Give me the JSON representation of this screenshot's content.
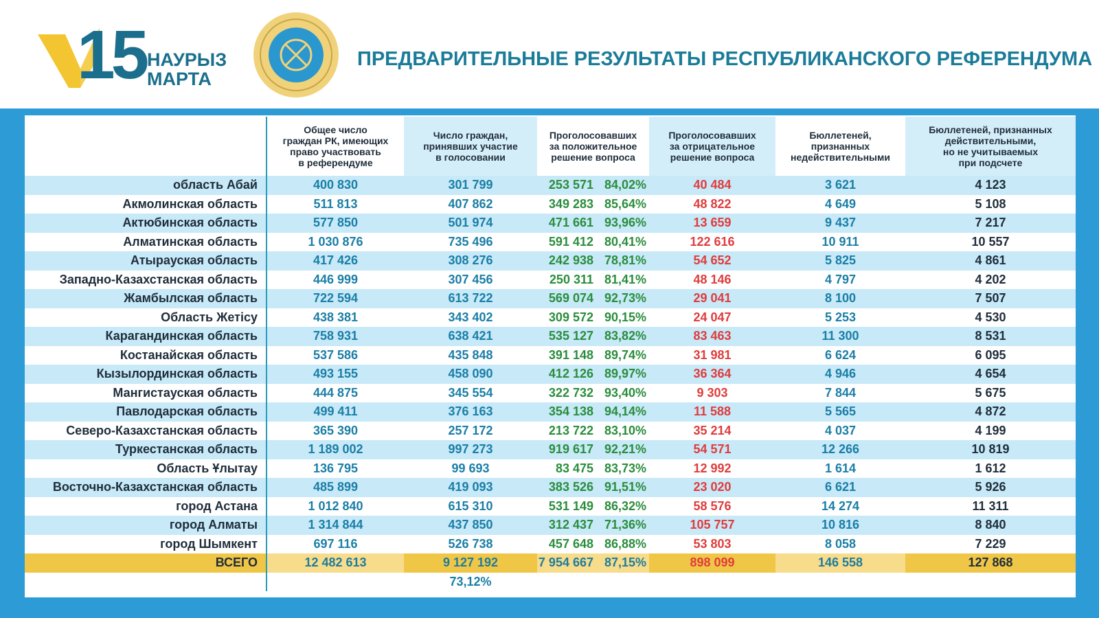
{
  "header": {
    "logo_number": "15",
    "logo_line1": "НАУРЫЗ",
    "logo_line2": "МАРТА",
    "title": "ПРЕДВАРИТЕЛЬНЫЕ РЕЗУЛЬТАТЫ РЕСПУБЛИКАНСКОГО РЕФЕРЕНДУМА"
  },
  "table": {
    "columns": [
      "Общее число\nграждан РК, имеющих\nправо участвовать\nв референдуме",
      "Число граждан,\nпринявших участие\nв голосовании",
      "Проголосовавших\nза положительное\nрешение вопроса",
      "Проголосовавших\nза отрицательное\nрешение вопроса",
      "Бюллетеней,\nпризнанных\nнедействительными",
      "Бюллетеней, признанных\nдействительными,\nно не учитываемых\nпри подсчете"
    ],
    "rows": [
      [
        "область Абай",
        "400 830",
        "301 799",
        "253 571",
        "84,02%",
        "40 484",
        "3 621",
        "4 123"
      ],
      [
        "Акмолинская область",
        "511 813",
        "407 862",
        "349 283",
        "85,64%",
        "48 822",
        "4 649",
        "5 108"
      ],
      [
        "Актюбинская область",
        "577 850",
        "501 974",
        "471 661",
        "93,96%",
        "13 659",
        "9 437",
        "7 217"
      ],
      [
        "Алматинская область",
        "1 030 876",
        "735 496",
        "591 412",
        "80,41%",
        "122 616",
        "10 911",
        "10 557"
      ],
      [
        "Атырауская область",
        "417 426",
        "308 276",
        "242 938",
        "78,81%",
        "54 652",
        "5 825",
        "4 861"
      ],
      [
        "Западно-Казахстанская область",
        "446 999",
        "307 456",
        "250 311",
        "81,41%",
        "48 146",
        "4 797",
        "4 202"
      ],
      [
        "Жамбылская область",
        "722 594",
        "613 722",
        "569 074",
        "92,73%",
        "29 041",
        "8 100",
        "7 507"
      ],
      [
        "Область Жетісу",
        "438 381",
        "343 402",
        "309 572",
        "90,15%",
        "24 047",
        "5 253",
        "4 530"
      ],
      [
        "Карагандинская область",
        "758 931",
        "638 421",
        "535 127",
        "83,82%",
        "83 463",
        "11 300",
        "8 531"
      ],
      [
        "Костанайская область",
        "537 586",
        "435 848",
        "391 148",
        "89,74%",
        "31 981",
        "6 624",
        "6 095"
      ],
      [
        "Кызылординская область",
        "493 155",
        "458 090",
        "412 126",
        "89,97%",
        "36 364",
        "4 946",
        "4 654"
      ],
      [
        "Мангистауская область",
        "444 875",
        "345 554",
        "322 732",
        "93,40%",
        "9 303",
        "7 844",
        "5 675"
      ],
      [
        "Павлодарская область",
        "499 411",
        "376 163",
        "354 138",
        "94,14%",
        "11 588",
        "5 565",
        "4 872"
      ],
      [
        "Северо-Казахстанская область",
        "365 390",
        "257 172",
        "213 722",
        "83,10%",
        "35 214",
        "4 037",
        "4 199"
      ],
      [
        "Туркестанская область",
        "1 189 002",
        "997 273",
        "919 617",
        "92,21%",
        "54 571",
        "12 266",
        "10 819"
      ],
      [
        "Область Ұлытау",
        "136 795",
        "99 693",
        "83 475",
        "83,73%",
        "12 992",
        "1 614",
        "1 612"
      ],
      [
        "Восточно-Казахстанская область",
        "485 899",
        "419 093",
        "383 526",
        "91,51%",
        "23 020",
        "6 621",
        "5 926"
      ],
      [
        "город Астана",
        "1 012 840",
        "615 310",
        "531 149",
        "86,32%",
        "58 576",
        "14 274",
        "11 311"
      ],
      [
        "город Алматы",
        "1 314 844",
        "437 850",
        "312 437",
        "71,36%",
        "105 757",
        "10 816",
        "8 840"
      ],
      [
        "город Шымкент",
        "697 116",
        "526 738",
        "457 648",
        "86,88%",
        "53 803",
        "8 058",
        "7 229"
      ]
    ],
    "total": [
      "ВСЕГО",
      "12 482 613",
      "9 127 192",
      "7 954 667",
      "87,15%",
      "898 099",
      "146 558",
      "127 868"
    ],
    "participation_pct": "73,12%"
  }
}
